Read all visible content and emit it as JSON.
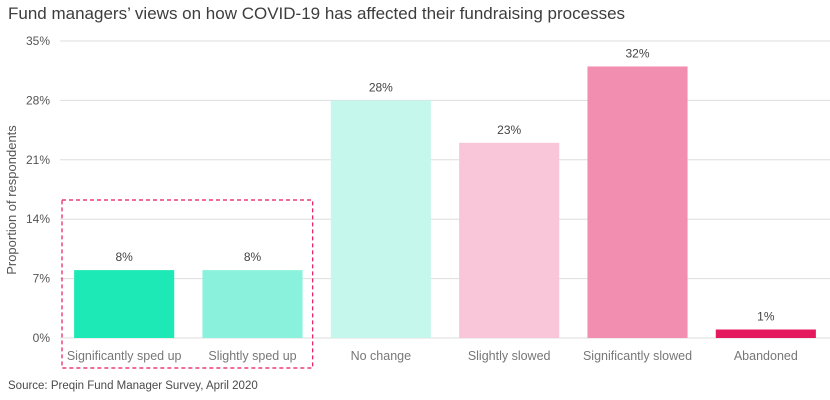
{
  "chart_data": {
    "type": "bar",
    "title": "Fund managers’ views on how COVID-19 has affected their fundraising processes",
    "source": "Source: Preqin Fund Manager Survey, April 2020",
    "xlabel": "",
    "ylabel": "Proportion of respondents",
    "categories": [
      "Significantly sped up",
      "Slightly sped up",
      "No change",
      "Slightly slowed",
      "Significantly slowed",
      "Abandoned"
    ],
    "values": [
      8,
      8,
      28,
      23,
      32,
      1
    ],
    "value_labels": [
      "8%",
      "8%",
      "28%",
      "23%",
      "32%",
      "1%"
    ],
    "colors": [
      "#1de9b6",
      "#8af2dc",
      "#c5f7ec",
      "#f8c6d8",
      "#f28eb0",
      "#e5195e"
    ],
    "ylim": [
      0,
      35
    ],
    "yticks": [
      0,
      7,
      14,
      21,
      28,
      35
    ],
    "ytick_labels": [
      "0%",
      "7%",
      "14%",
      "21%",
      "28%",
      "35%"
    ],
    "grid": true,
    "highlight": {
      "categories": [
        "Significantly sped up",
        "Slightly sped up"
      ],
      "color": "#e5195e",
      "style": "dashed"
    }
  }
}
